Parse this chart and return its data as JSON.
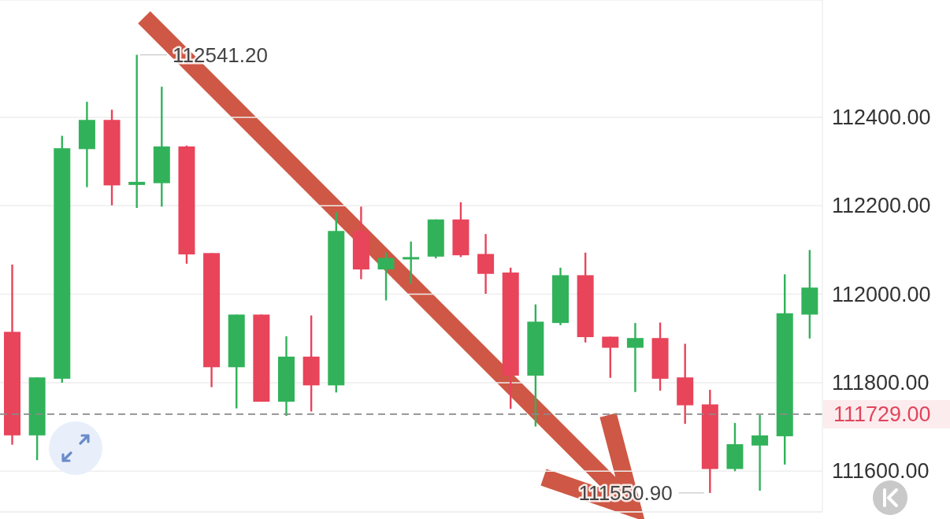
{
  "chart_data": {
    "type": "candlestick",
    "categories": [
      null,
      null,
      null,
      null,
      null,
      null,
      null,
      null,
      null,
      null,
      null,
      null,
      null,
      null,
      null,
      null,
      null,
      null,
      null,
      null,
      null,
      null,
      null,
      null,
      null,
      null,
      null,
      null,
      null,
      null,
      null,
      null,
      null
    ],
    "ohlc": [
      [
        111915,
        112067,
        111660,
        111681
      ],
      [
        111681,
        111812,
        111625,
        111812
      ],
      [
        111809,
        112358,
        111800,
        112330
      ],
      [
        112328,
        112435,
        112242,
        112394
      ],
      [
        112394,
        112417,
        112201,
        112246
      ],
      [
        112247,
        112541.2,
        112195,
        112254
      ],
      [
        112251,
        112469,
        112198,
        112334
      ],
      [
        112334,
        112336,
        112069,
        112090
      ],
      [
        112093,
        112093,
        111790,
        111835
      ],
      [
        111835,
        111954,
        111742,
        111954
      ],
      [
        111954,
        111954,
        111757,
        111757
      ],
      [
        111757,
        111905,
        111725,
        111859
      ],
      [
        111859,
        111952,
        111735,
        111794
      ],
      [
        111794,
        112185,
        111778,
        112143
      ],
      [
        112143,
        112198,
        112034,
        112056
      ],
      [
        112056,
        112094,
        111986,
        112082
      ],
      [
        112080,
        112119,
        112024,
        112084
      ],
      [
        112085,
        112169,
        112081,
        112169
      ],
      [
        112169,
        112208,
        112084,
        112088
      ],
      [
        112091,
        112136,
        112001,
        112046
      ],
      [
        112049,
        112060,
        111741,
        111816
      ],
      [
        111816,
        111977,
        111701,
        111938
      ],
      [
        111935,
        112060,
        111930,
        112043
      ],
      [
        112043,
        112094,
        111891,
        111903
      ],
      [
        111904,
        111904,
        111811,
        111879
      ],
      [
        111879,
        111935,
        111779,
        111901
      ],
      [
        111901,
        111936,
        111782,
        111809
      ],
      [
        111812,
        111888,
        111707,
        111749
      ],
      [
        111751,
        111784,
        111550.9,
        111605
      ],
      [
        111605,
        111709,
        111600,
        111661
      ],
      [
        111658,
        111727,
        111556,
        111681
      ],
      [
        111679,
        112045,
        111615,
        111957
      ],
      [
        111954,
        112100,
        111900,
        112015
      ]
    ],
    "colors": [
      "#e8445a",
      "#31b25a",
      "#31b25a",
      "#31b25a",
      "#e8445a",
      "#31b25a",
      "#31b25a",
      "#e8445a",
      "#e8445a",
      "#31b25a",
      "#e8445a",
      "#31b25a",
      "#e8445a",
      "#31b25a",
      "#e8445a",
      "#31b25a",
      "#31b25a",
      "#31b25a",
      "#e8445a",
      "#e8445a",
      "#e8445a",
      "#31b25a",
      "#31b25a",
      "#e8445a",
      "#e8445a",
      "#31b25a",
      "#e8445a",
      "#e8445a",
      "#e8445a",
      "#31b25a",
      "#31b25a",
      "#31b25a",
      "#31b25a"
    ],
    "ylim": [
      111508,
      112665
    ],
    "yticks": [
      {
        "value": 111600,
        "label": "111600.00"
      },
      {
        "value": 111800,
        "label": "111800.00"
      },
      {
        "value": 112000,
        "label": "112000.00"
      },
      {
        "value": 112200,
        "label": "112200.00"
      },
      {
        "value": 112400,
        "label": "112400.00"
      }
    ],
    "tick_labels": "y",
    "grid": "y",
    "ref_lines": [
      {
        "axis": "y",
        "value": 111729,
        "label": "111729.00",
        "color": "#8a8a8a",
        "line_style": "dashed"
      }
    ],
    "annotations": [
      "112541.20",
      "111550.90"
    ]
  }
}
